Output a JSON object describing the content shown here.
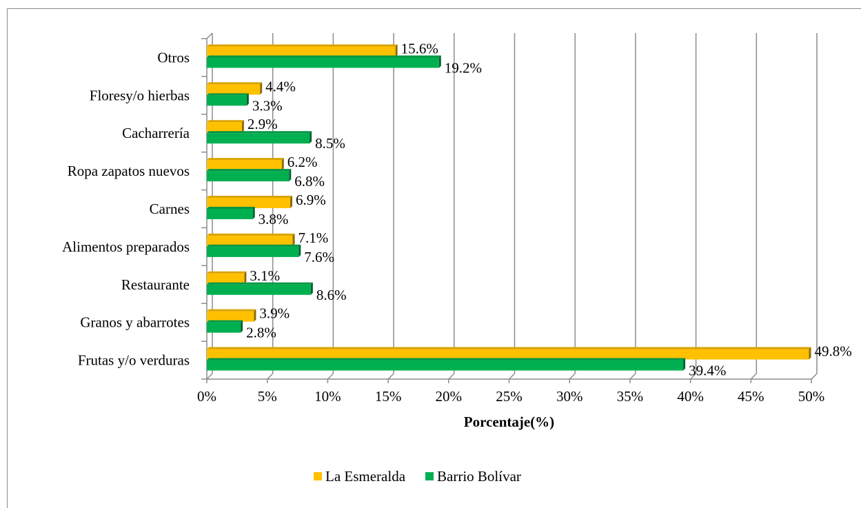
{
  "chart_data": {
    "type": "bar",
    "orientation": "horizontal",
    "categories": [
      "Otros",
      "Floresy/o hierbas",
      "Cacharrería",
      "Ropa zapatos nuevos",
      "Carnes",
      "Alimentos preparados",
      "Restaurante",
      "Granos y abarrotes",
      "Frutas y/o verduras"
    ],
    "series": [
      {
        "name": "La Esmeralda",
        "color": "#FFC000",
        "values": [
          15.6,
          4.4,
          2.9,
          6.2,
          6.9,
          7.1,
          3.1,
          3.9,
          49.8
        ],
        "labels": [
          "15.6%",
          "4.4%",
          "2.9%",
          "6.2%",
          "6.9%",
          "7.1%",
          "3.1%",
          "3.9%",
          "49.8%"
        ]
      },
      {
        "name": "Barrio Bolívar",
        "color": "#00B050",
        "values": [
          19.2,
          3.3,
          8.5,
          6.8,
          3.8,
          7.6,
          8.6,
          2.8,
          39.4
        ],
        "labels": [
          "19.2%",
          "3.3%",
          "8.5%",
          "6.8%",
          "3.8%",
          "7.6%",
          "8.6%",
          "2.8%",
          "39.4%"
        ]
      }
    ],
    "xlim": [
      0,
      50
    ],
    "xticks": [
      "0%",
      "5%",
      "10%",
      "15%",
      "20%",
      "25%",
      "30%",
      "35%",
      "40%",
      "45%",
      "50%"
    ],
    "xlabel": "Porcentaje(%)",
    "ylabel": "",
    "title": "",
    "grid": true,
    "legend_position": "bottom"
  }
}
